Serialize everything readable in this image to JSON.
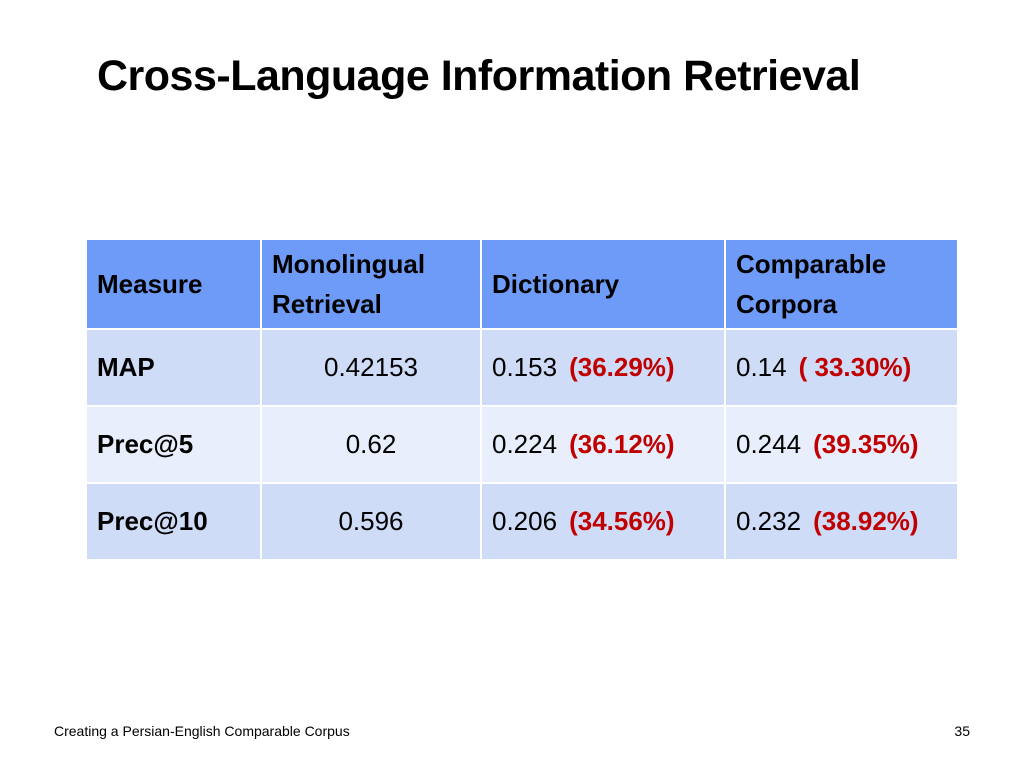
{
  "slide": {
    "title": "Cross-Language Information Retrieval",
    "footer": "Creating a Persian-English Comparable Corpus",
    "page_number": "35",
    "colors": {
      "header_bg": "#6e9bf7",
      "row_dark_bg": "#cfdcf7",
      "row_light_bg": "#e8eefb",
      "percent_text": "#c00000"
    }
  },
  "table": {
    "headers": {
      "measure": "Measure",
      "mono_line1": "Monolingual",
      "mono_line2": "Retrieval",
      "dictionary": "Dictionary",
      "comp_line1": "Comparable",
      "comp_line2": "Corpora"
    },
    "rows": [
      {
        "measure": "MAP",
        "mono": "0.42153",
        "dict_value": "0.153",
        "dict_pct": "(36.29%)",
        "comp_value": "0.14",
        "comp_pct": "( 33.30%)"
      },
      {
        "measure": "Prec@5",
        "mono": "0.62",
        "dict_value": "0.224",
        "dict_pct": "(36.12%)",
        "comp_value": "0.244",
        "comp_pct": "(39.35%)"
      },
      {
        "measure": "Prec@10",
        "mono": "0.596",
        "dict_value": "0.206",
        "dict_pct": "(34.56%)",
        "comp_value": "0.232",
        "comp_pct": "(38.92%)"
      }
    ]
  }
}
